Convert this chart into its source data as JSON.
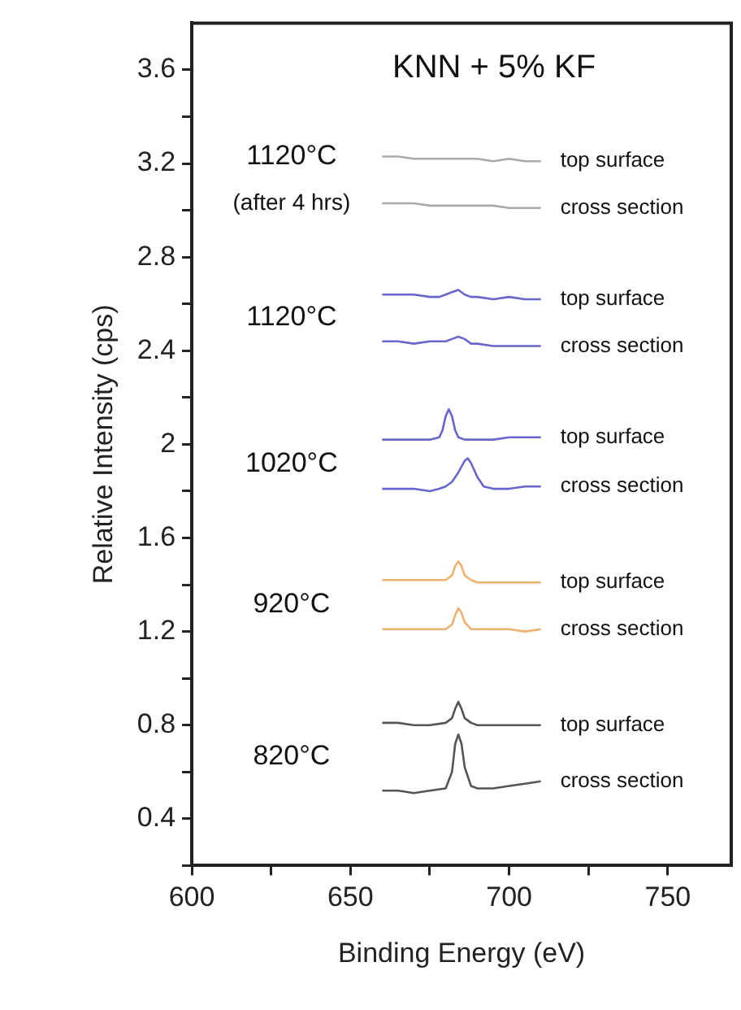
{
  "chart_data": {
    "type": "line",
    "title": "KNN + 5% KF",
    "xlabel": "Binding Energy (eV)",
    "ylabel": "Relative Intensity (cps)",
    "xlim": [
      600,
      770
    ],
    "xticks": [
      600,
      {
        "value": 625,
        "label": null
      },
      650,
      {
        "value": 675,
        "label": null
      },
      700,
      {
        "value": 725,
        "label": null
      },
      750
    ],
    "ylim": [
      0.2,
      3.8
    ],
    "yticks": [
      {
        "value": 0.2,
        "label": null
      },
      0.4,
      {
        "value": 0.6,
        "label": null
      },
      0.8,
      {
        "value": 1.0,
        "label": null
      },
      1.2,
      {
        "value": 1.4,
        "label": null
      },
      1.6,
      {
        "value": 1.8,
        "label": null
      },
      2.0,
      {
        "value": 2.2,
        "label": null
      },
      2.4,
      {
        "value": 2.6,
        "label": null
      },
      2.8,
      {
        "value": 3.0,
        "label": null
      },
      3.2,
      {
        "value": 3.4,
        "label": null
      },
      3.6
    ],
    "grid": false,
    "legend": false,
    "marker": "none",
    "line_style": "solid",
    "series": [
      {
        "name": "top surface",
        "color": "#aaaaaa",
        "x": [
          660,
          665,
          670,
          675,
          678,
          680,
          682,
          684,
          686,
          688,
          690,
          695,
          700,
          705,
          710
        ],
        "values": [
          3.23,
          3.23,
          3.22,
          3.22,
          3.22,
          3.22,
          3.22,
          3.22,
          3.22,
          3.22,
          3.22,
          3.21,
          3.22,
          3.21,
          3.21
        ]
      },
      {
        "name": "cross section",
        "color": "#aaaaaa",
        "x": [
          660,
          665,
          670,
          675,
          678,
          680,
          682,
          684,
          686,
          688,
          690,
          695,
          700,
          705,
          710
        ],
        "values": [
          3.03,
          3.03,
          3.03,
          3.02,
          3.02,
          3.02,
          3.02,
          3.02,
          3.02,
          3.02,
          3.02,
          3.02,
          3.01,
          3.01,
          3.01
        ]
      },
      {
        "name": "top surface",
        "color": "#6666cc",
        "x": [
          660,
          665,
          670,
          675,
          678,
          680,
          682,
          684,
          686,
          688,
          690,
          695,
          700,
          705,
          710
        ],
        "values": [
          2.64,
          2.64,
          2.64,
          2.63,
          2.63,
          2.64,
          2.65,
          2.66,
          2.64,
          2.63,
          2.63,
          2.62,
          2.63,
          2.62,
          2.62
        ]
      },
      {
        "name": "cross section",
        "color": "#6666cc",
        "x": [
          660,
          665,
          670,
          675,
          678,
          680,
          682,
          684,
          686,
          688,
          690,
          695,
          700,
          705,
          710
        ],
        "values": [
          2.44,
          2.44,
          2.43,
          2.44,
          2.44,
          2.44,
          2.45,
          2.46,
          2.45,
          2.43,
          2.43,
          2.42,
          2.42,
          2.42,
          2.42
        ]
      },
      {
        "name": "top surface",
        "color": "#6666cc",
        "x": [
          660,
          665,
          670,
          675,
          678,
          679,
          680,
          681,
          682,
          683,
          684,
          686,
          690,
          695,
          700,
          705,
          710
        ],
        "values": [
          2.02,
          2.02,
          2.02,
          2.02,
          2.03,
          2.06,
          2.12,
          2.15,
          2.12,
          2.06,
          2.03,
          2.02,
          2.02,
          2.02,
          2.03,
          2.03,
          2.03
        ]
      },
      {
        "name": "cross section",
        "color": "#6666cc",
        "x": [
          660,
          665,
          670,
          675,
          678,
          680,
          682,
          684,
          686,
          687,
          688,
          690,
          692,
          695,
          700,
          705,
          710
        ],
        "values": [
          1.81,
          1.81,
          1.81,
          1.8,
          1.81,
          1.82,
          1.84,
          1.88,
          1.93,
          1.94,
          1.92,
          1.86,
          1.82,
          1.81,
          1.81,
          1.82,
          1.82
        ]
      },
      {
        "name": "top surface",
        "color": "#f0b070",
        "x": [
          660,
          665,
          670,
          675,
          680,
          682,
          683,
          684,
          685,
          686,
          688,
          690,
          695,
          700,
          705,
          710
        ],
        "values": [
          1.42,
          1.42,
          1.42,
          1.42,
          1.42,
          1.44,
          1.48,
          1.5,
          1.48,
          1.44,
          1.42,
          1.41,
          1.41,
          1.41,
          1.41,
          1.41
        ]
      },
      {
        "name": "cross section",
        "color": "#f0b070",
        "x": [
          660,
          665,
          670,
          675,
          680,
          682,
          683,
          684,
          685,
          686,
          688,
          690,
          695,
          700,
          705,
          710
        ],
        "values": [
          1.21,
          1.21,
          1.21,
          1.21,
          1.21,
          1.23,
          1.27,
          1.3,
          1.28,
          1.24,
          1.21,
          1.21,
          1.21,
          1.21,
          1.2,
          1.21
        ]
      },
      {
        "name": "top surface",
        "color": "#555555",
        "x": [
          660,
          665,
          670,
          675,
          680,
          682,
          683,
          684,
          685,
          686,
          688,
          690,
          695,
          700,
          705,
          710
        ],
        "values": [
          0.81,
          0.81,
          0.8,
          0.8,
          0.81,
          0.83,
          0.87,
          0.9,
          0.87,
          0.83,
          0.81,
          0.8,
          0.8,
          0.8,
          0.8,
          0.8
        ]
      },
      {
        "name": "cross section",
        "color": "#555555",
        "x": [
          660,
          665,
          670,
          675,
          680,
          682,
          683,
          684,
          685,
          686,
          688,
          690,
          695,
          700,
          705,
          710
        ],
        "values": [
          0.52,
          0.52,
          0.51,
          0.52,
          0.53,
          0.6,
          0.72,
          0.76,
          0.72,
          0.62,
          0.54,
          0.53,
          0.53,
          0.54,
          0.55,
          0.56
        ]
      }
    ],
    "annotations": [
      "1120°C",
      "(after 4 hrs)",
      "1120°C",
      "1020°C",
      "920°C",
      "820°C"
    ]
  }
}
